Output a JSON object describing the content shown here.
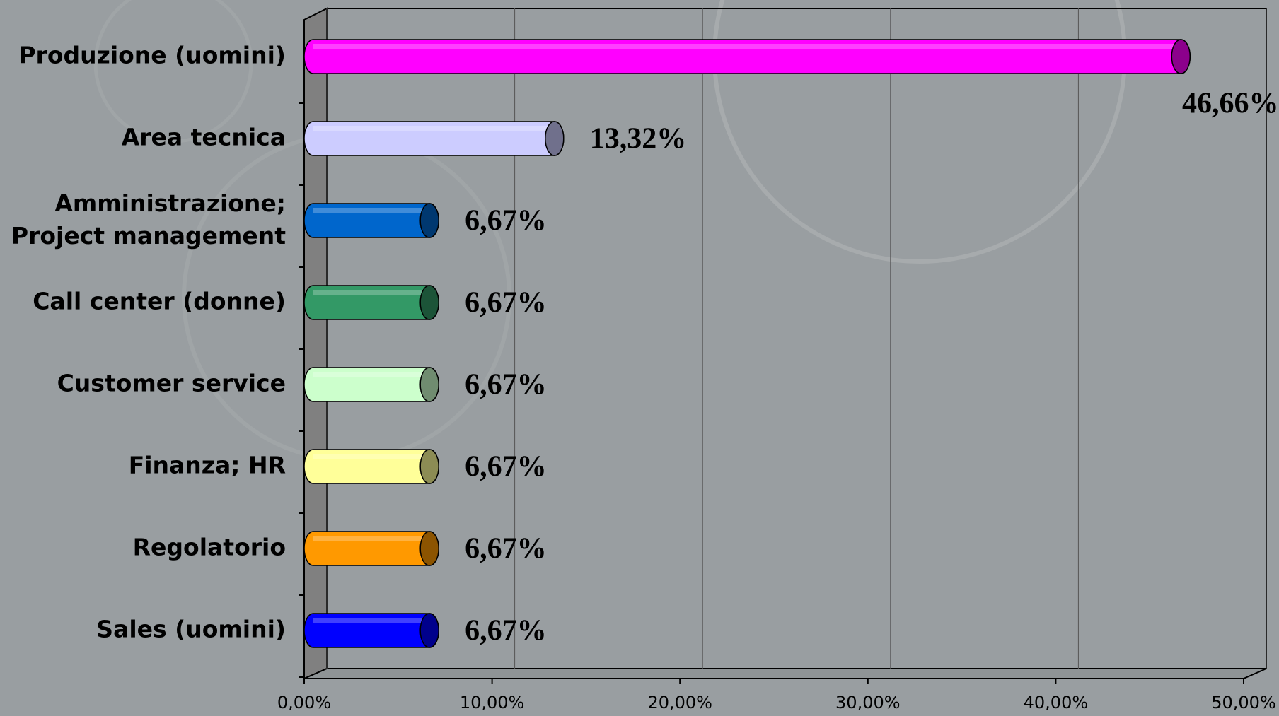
{
  "chart_data": {
    "type": "bar",
    "orientation": "horizontal",
    "categories": [
      "Produzione (uomini)",
      "Area tecnica",
      "Amministrazione; Project management",
      "Call center (donne)",
      "Customer service",
      "Finanza; HR",
      "Regolatorio",
      "Sales (uomini)"
    ],
    "values": [
      46.66,
      13.32,
      6.67,
      6.67,
      6.67,
      6.67,
      6.67,
      6.67
    ],
    "value_labels": [
      "46,66%",
      "13,32%",
      "6,67%",
      "6,67%",
      "6,67%",
      "6,67%",
      "6,67%",
      "6,67%"
    ],
    "colors": [
      "#ff00ff",
      "#ccccff",
      "#0066cc",
      "#339966",
      "#ccffcc",
      "#ffff99",
      "#ff9900",
      "#0000ff"
    ],
    "xlim": [
      0,
      50
    ],
    "xticks": [
      {
        "value": 0,
        "label": "0,00%"
      },
      {
        "value": 10,
        "label": "10,00%"
      },
      {
        "value": 20,
        "label": "20,00%"
      },
      {
        "value": 30,
        "label": "30,00%"
      },
      {
        "value": 40,
        "label": "40,00%"
      },
      {
        "value": 50,
        "label": "50,00%"
      }
    ],
    "grid": true
  }
}
